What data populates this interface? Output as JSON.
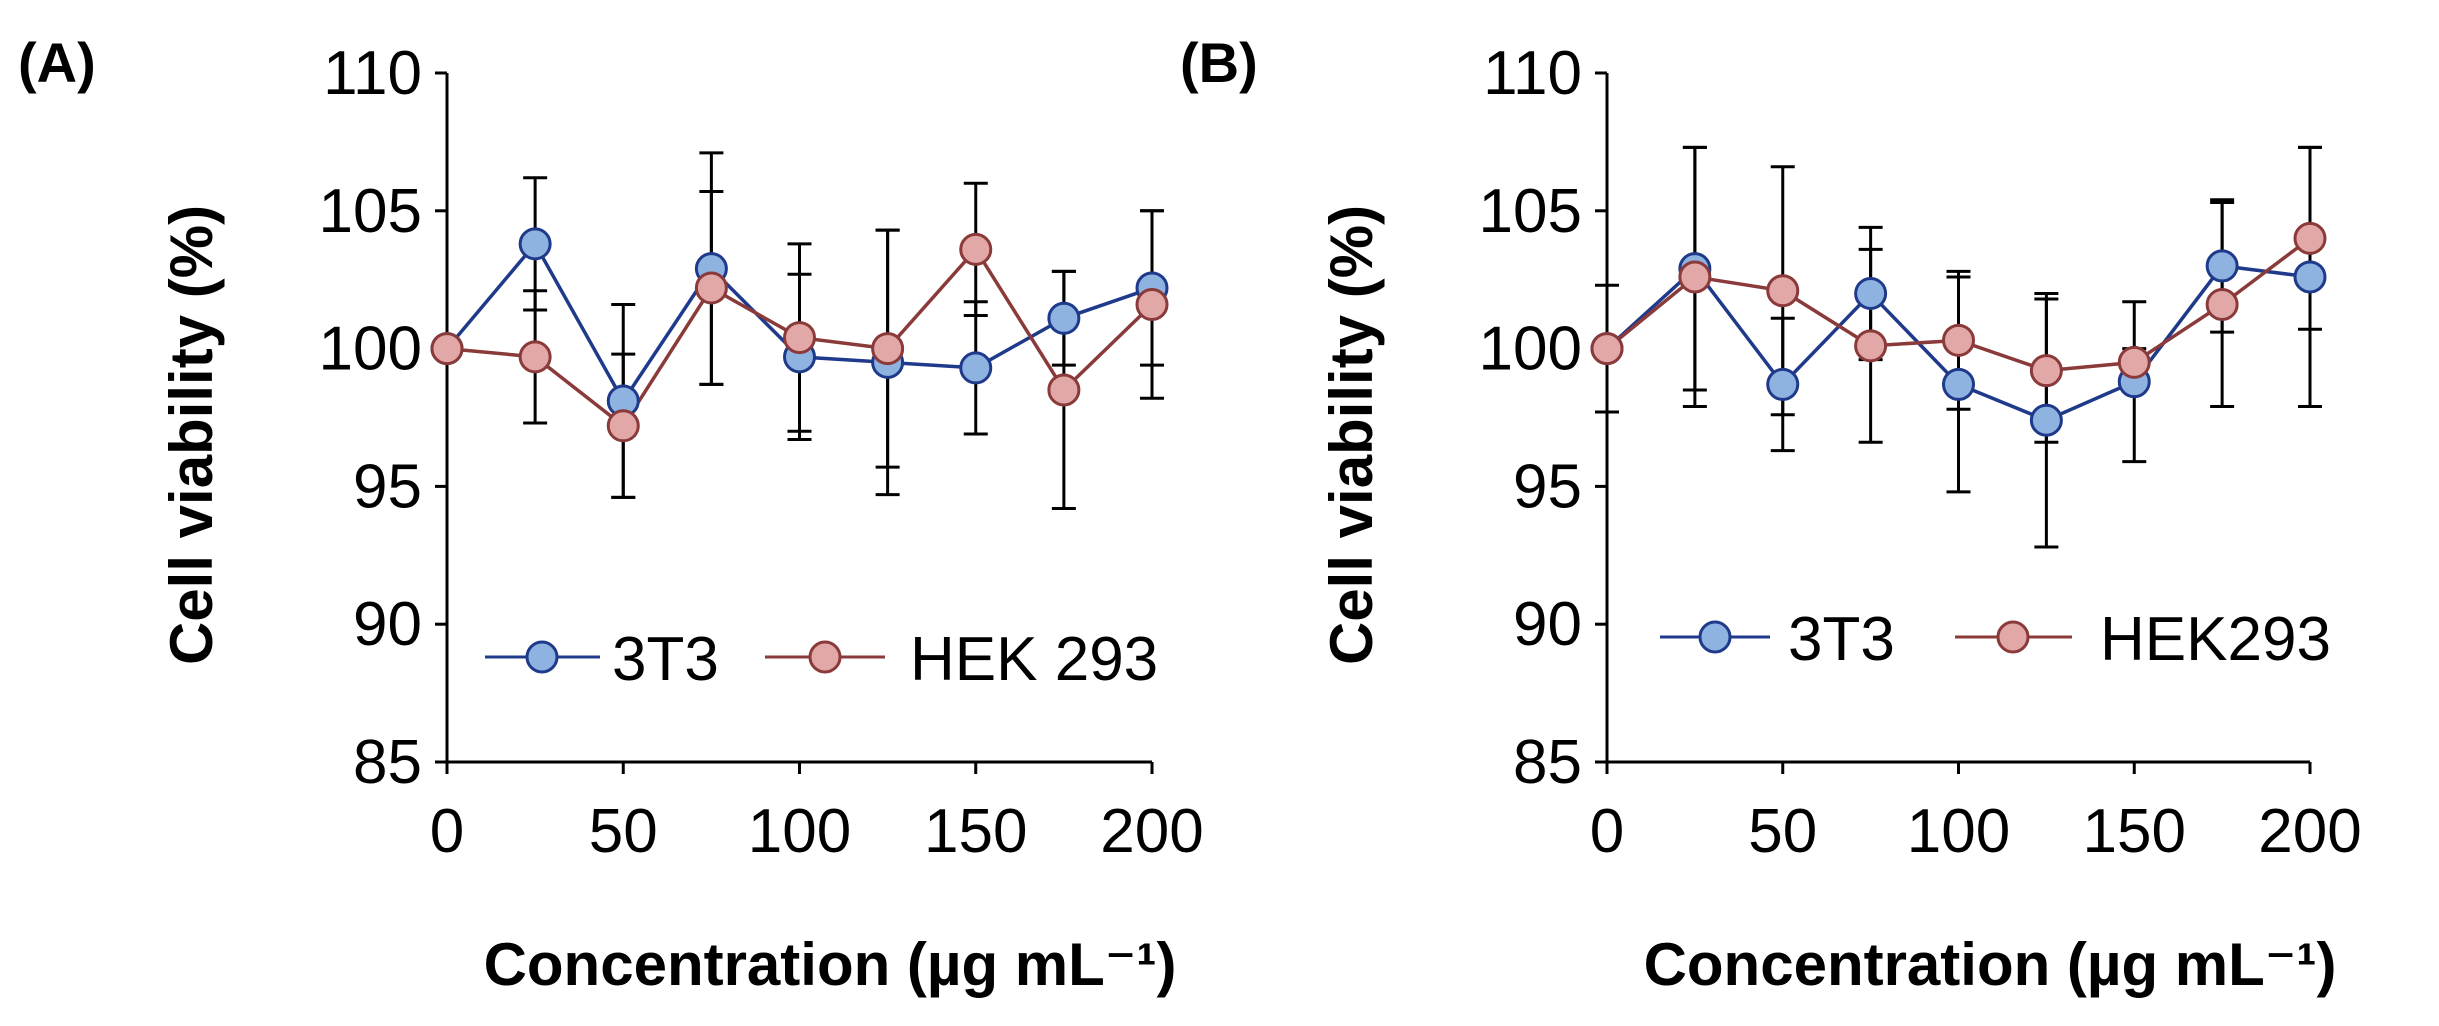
{
  "chart_data": [
    {
      "type": "line",
      "panel_label": "(A)",
      "xlabel": "Concentration (µg mL⁻¹)",
      "ylabel": "Cell viability (%)",
      "xlim": [
        0,
        200
      ],
      "ylim": [
        85,
        110
      ],
      "xticks": [
        "0",
        "50",
        "100",
        "150",
        "200"
      ],
      "yticks": [
        "85",
        "90",
        "95",
        "100",
        "105",
        "110"
      ],
      "grid": false,
      "legend_position": "bottom-center",
      "x": [
        0,
        25,
        50,
        75,
        100,
        125,
        150,
        175,
        200
      ],
      "series": [
        {
          "name": "3T3",
          "color": "#1f3a8a",
          "marker_fill": "#8fb3e0",
          "values": [
            100,
            103.8,
            98.1,
            102.9,
            99.7,
            99.5,
            99.3,
            101.1,
            102.2
          ],
          "errors": [
            0,
            2.4,
            3.5,
            4.2,
            3.0,
            4.8,
            2.4,
            1.7,
            2.8
          ]
        },
        {
          "name": "HEK 293",
          "color": "#8b3a3a",
          "marker_fill": "#e2a8a8",
          "values": [
            100,
            99.7,
            97.2,
            102.2,
            100.4,
            100.0,
            103.6,
            98.5,
            101.6
          ],
          "errors": [
            0,
            2.4,
            2.6,
            3.5,
            3.4,
            4.3,
            2.4,
            4.3,
            3.4
          ]
        }
      ]
    },
    {
      "type": "line",
      "panel_label": "(B)",
      "xlabel": "Concentration (µg mL⁻¹)",
      "ylabel": "Cell viability (%)",
      "xlim": [
        0,
        200
      ],
      "ylim": [
        85,
        110
      ],
      "xticks": [
        "0",
        "50",
        "100",
        "150",
        "200"
      ],
      "yticks": [
        "85",
        "90",
        "95",
        "100",
        "105",
        "110"
      ],
      "grid": false,
      "legend_position": "bottom-center",
      "x": [
        0,
        25,
        50,
        75,
        100,
        125,
        150,
        175,
        200
      ],
      "series": [
        {
          "name": "3T3",
          "color": "#1f3a8a",
          "marker_fill": "#8fb3e0",
          "values": [
            100,
            102.9,
            98.7,
            102.0,
            98.7,
            97.4,
            98.8,
            103.0,
            102.6
          ],
          "errors": [
            2.3,
            4.4,
            2.4,
            2.4,
            3.9,
            4.6,
            2.9,
            2.4,
            4.7
          ]
        },
        {
          "name": "HEK293",
          "color": "#8b3a3a",
          "marker_fill": "#e2a8a8",
          "values": [
            100,
            102.6,
            102.1,
            100.1,
            100.3,
            99.2,
            99.5,
            101.6,
            104.0
          ],
          "errors": [
            0,
            4.7,
            4.5,
            3.5,
            2.5,
            2.6,
            0.5,
            3.7,
            3.3
          ]
        }
      ]
    }
  ]
}
